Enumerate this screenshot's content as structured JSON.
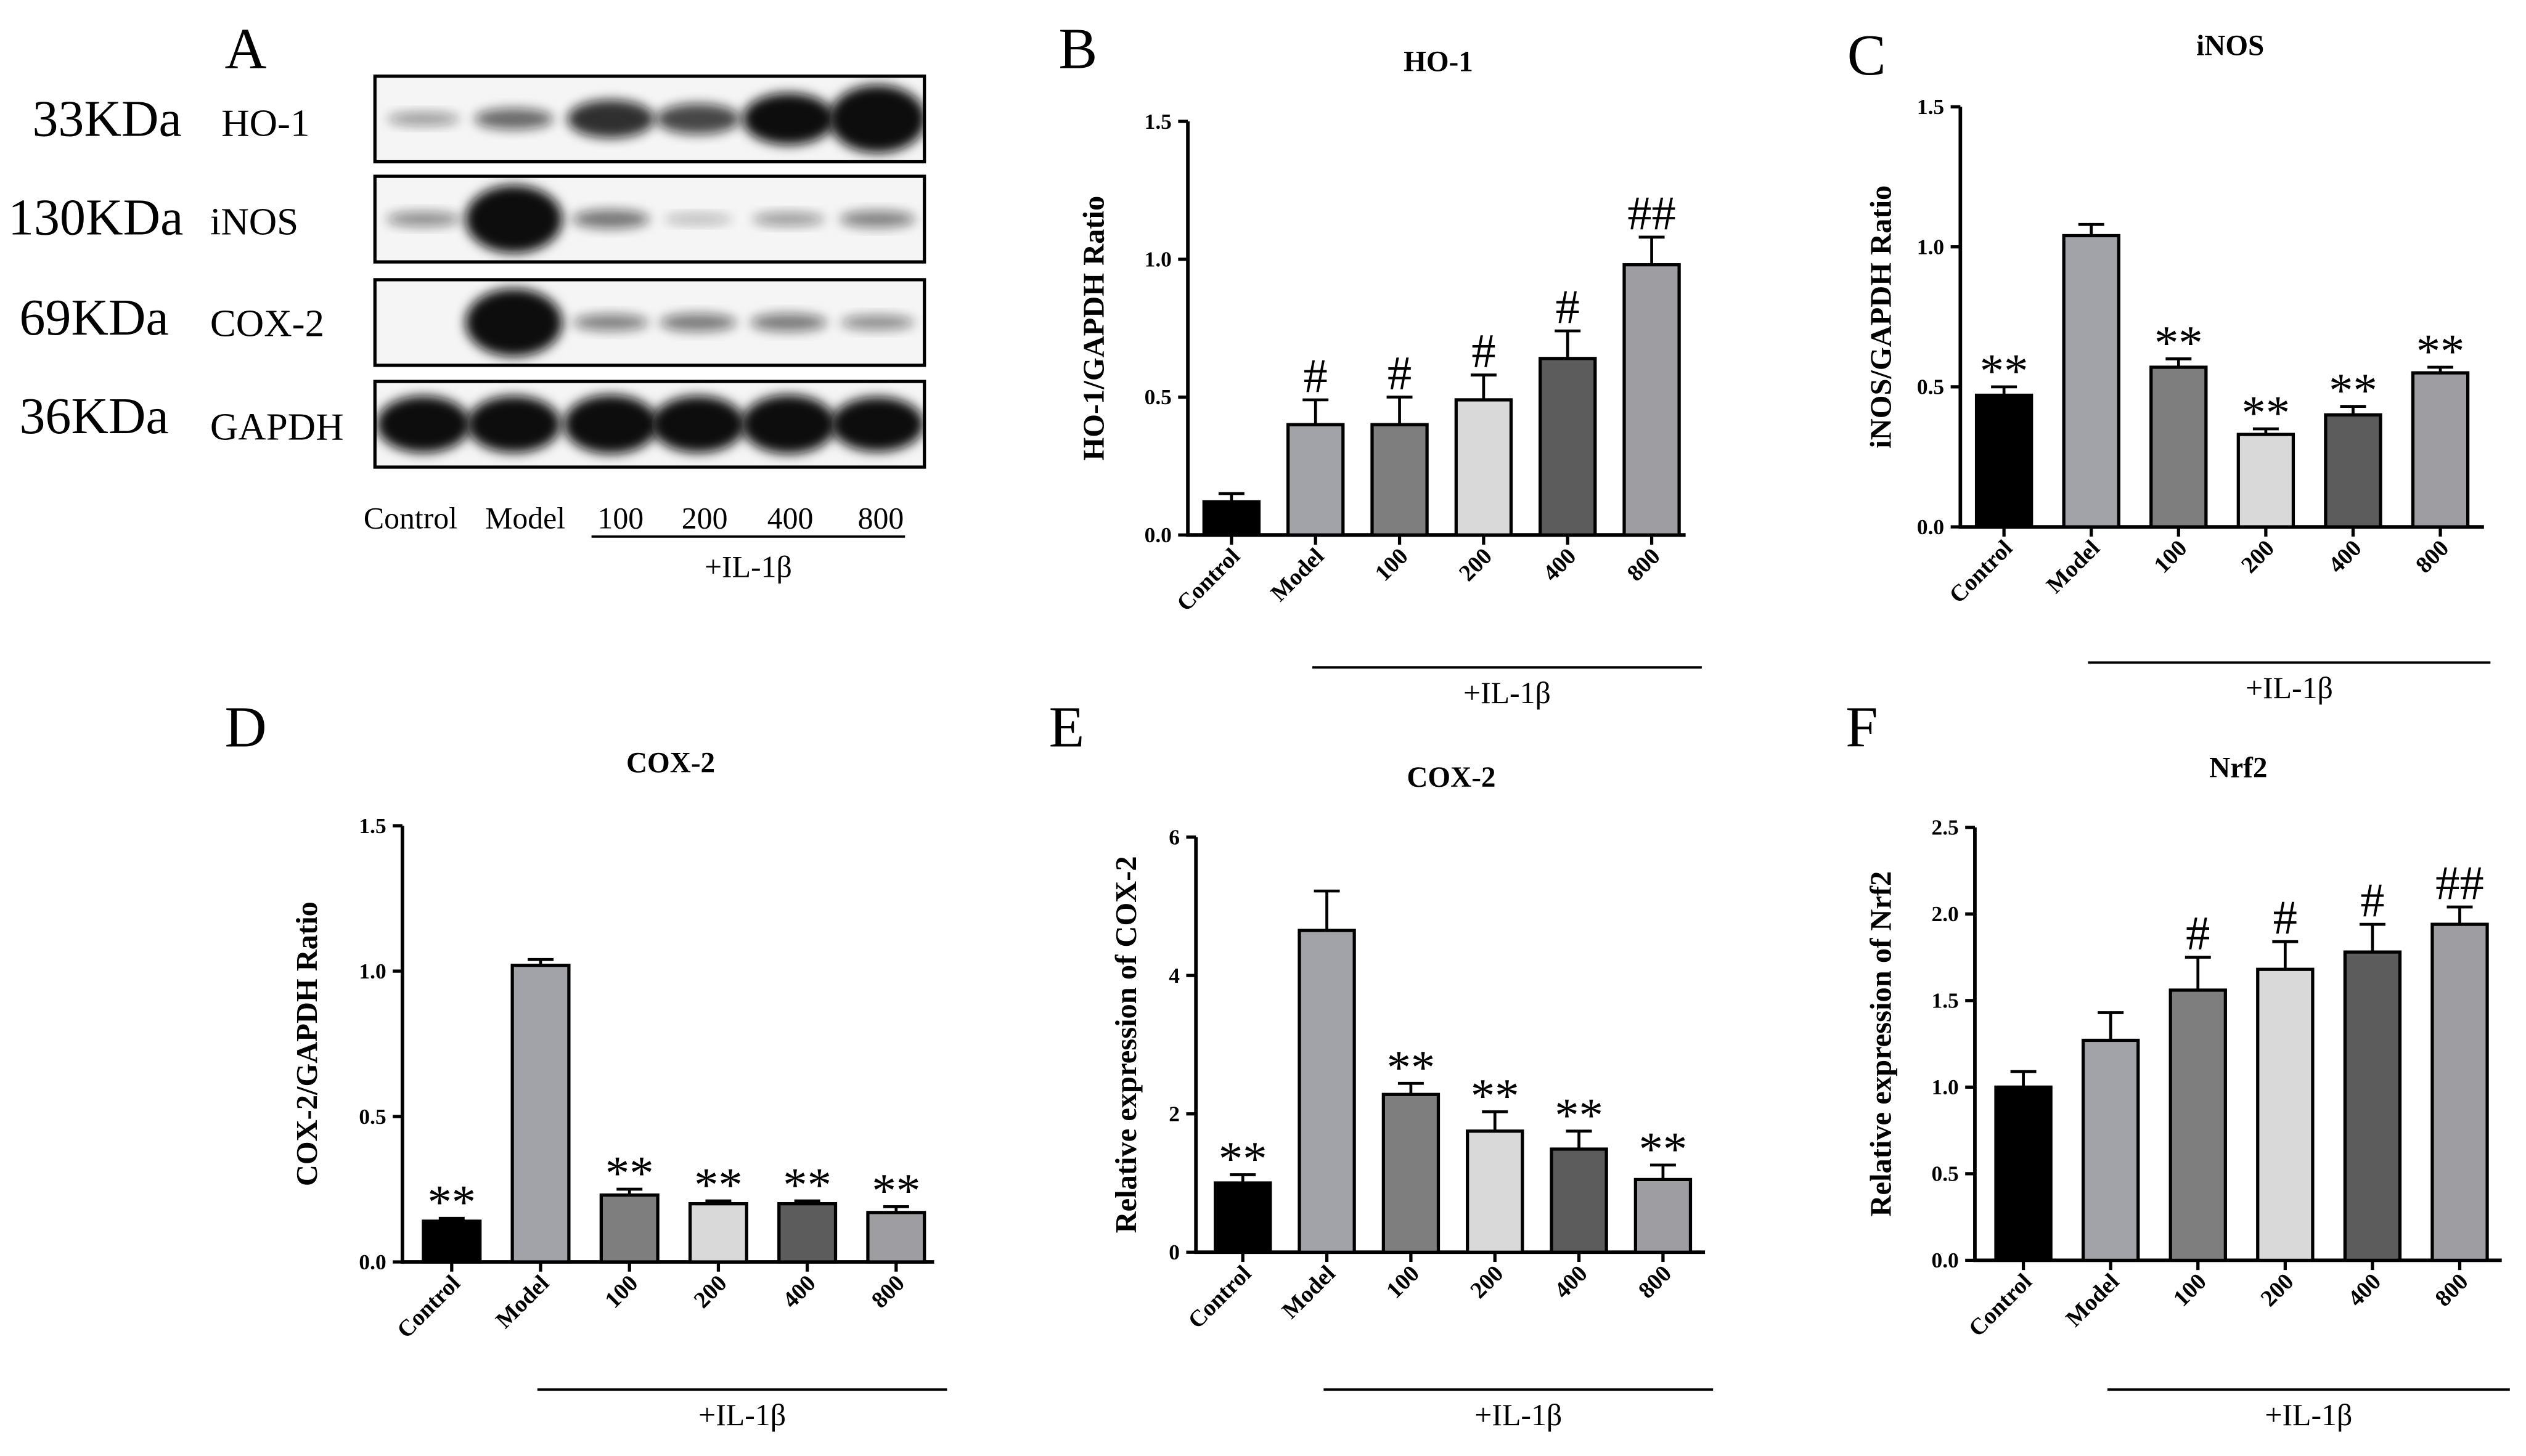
{
  "panels": {
    "A": {
      "letter": "A",
      "rows": [
        {
          "weight": "33KDa",
          "protein": "HO-1",
          "band_intensity": [
            0.25,
            0.45,
            0.7,
            0.6,
            0.85,
            1.0
          ]
        },
        {
          "weight": "130KDa",
          "protein": "iNOS",
          "band_intensity": [
            0.3,
            1.0,
            0.4,
            0.12,
            0.25,
            0.35
          ]
        },
        {
          "weight": "69KDa",
          "protein": "COX-2",
          "band_intensity": [
            0,
            1.0,
            0.35,
            0.38,
            0.38,
            0.3
          ]
        },
        {
          "weight": "36KDa",
          "protein": "GAPDH",
          "band_intensity": [
            0.9,
            0.9,
            0.92,
            0.9,
            0.92,
            0.88
          ]
        }
      ],
      "lanes": [
        "Control",
        "Model",
        "100",
        "200",
        "400",
        "800"
      ],
      "treatment_label": "+IL-1β"
    }
  },
  "bar_colors": [
    "#000000",
    "#a2a3a8",
    "#7e7e7e",
    "#d9d9d9",
    "#5c5c5c",
    "#9d9da2"
  ],
  "chart_data": [
    {
      "panel": "B",
      "type": "bar",
      "title": "HO-1",
      "ylabel": "HO-1/GAPDH Ratio",
      "xlabel": "",
      "ylim": [
        0,
        1.5
      ],
      "yticks": [
        "0.0",
        "0.5",
        "1.0",
        "1.5"
      ],
      "categories": [
        "Control",
        "Model",
        "100",
        "200",
        "400",
        "800"
      ],
      "values": [
        0.12,
        0.4,
        0.4,
        0.49,
        0.64,
        0.98
      ],
      "errors": [
        0.03,
        0.09,
        0.1,
        0.09,
        0.1,
        0.1
      ],
      "significance": [
        "",
        "#",
        "#",
        "#",
        "#",
        "##"
      ],
      "group_label": "+IL-1β"
    },
    {
      "panel": "C",
      "type": "bar",
      "title": "iNOS",
      "ylabel": "iNOS/GAPDH Ratio",
      "xlabel": "",
      "ylim": [
        0,
        1.5
      ],
      "yticks": [
        "0.0",
        "0.5",
        "1.0",
        "1.5"
      ],
      "categories": [
        "Control",
        "Model",
        "100",
        "200",
        "400",
        "800"
      ],
      "values": [
        0.47,
        1.04,
        0.57,
        0.33,
        0.4,
        0.55
      ],
      "errors": [
        0.03,
        0.04,
        0.03,
        0.02,
        0.03,
        0.02
      ],
      "significance": [
        "**",
        "",
        "**",
        "**",
        "**",
        "**"
      ],
      "group_label": "+IL-1β"
    },
    {
      "panel": "D",
      "type": "bar",
      "title": "COX-2",
      "ylabel": "COX-2/GAPDH Ratio",
      "xlabel": "",
      "ylim": [
        0,
        1.5
      ],
      "yticks": [
        "0.0",
        "0.5",
        "1.0",
        "1.5"
      ],
      "categories": [
        "Control",
        "Model",
        "100",
        "200",
        "400",
        "800"
      ],
      "values": [
        0.14,
        1.02,
        0.23,
        0.2,
        0.2,
        0.17
      ],
      "errors": [
        0.01,
        0.02,
        0.02,
        0.01,
        0.01,
        0.02
      ],
      "significance": [
        "**",
        "",
        "**",
        "**",
        "**",
        "**"
      ],
      "group_label": "+IL-1β"
    },
    {
      "panel": "E",
      "type": "bar",
      "title": "COX-2",
      "ylabel": "Relative expression of COX-2",
      "xlabel": "",
      "ylim": [
        0,
        6
      ],
      "yticks": [
        "0",
        "2",
        "4",
        "6"
      ],
      "categories": [
        "Control",
        "Model",
        "100",
        "200",
        "400",
        "800"
      ],
      "values": [
        1.0,
        4.65,
        2.28,
        1.75,
        1.49,
        1.05
      ],
      "errors": [
        0.12,
        0.57,
        0.16,
        0.28,
        0.26,
        0.21
      ],
      "significance": [
        "**",
        "",
        "**",
        "**",
        "**",
        "**"
      ],
      "group_label": "+IL-1β"
    },
    {
      "panel": "F",
      "type": "bar",
      "title": "Nrf2",
      "ylabel": "Relative expression of Nrf2",
      "xlabel": "",
      "ylim": [
        0,
        2.5
      ],
      "yticks": [
        "0.0",
        "0.5",
        "1.0",
        "1.5",
        "2.0",
        "2.5"
      ],
      "categories": [
        "Control",
        "Model",
        "100",
        "200",
        "400",
        "800"
      ],
      "values": [
        1.0,
        1.27,
        1.56,
        1.68,
        1.78,
        1.94
      ],
      "errors": [
        0.09,
        0.16,
        0.19,
        0.16,
        0.16,
        0.1
      ],
      "significance": [
        "",
        "",
        "#",
        "#",
        "#",
        "##"
      ],
      "group_label": "+IL-1β"
    }
  ]
}
